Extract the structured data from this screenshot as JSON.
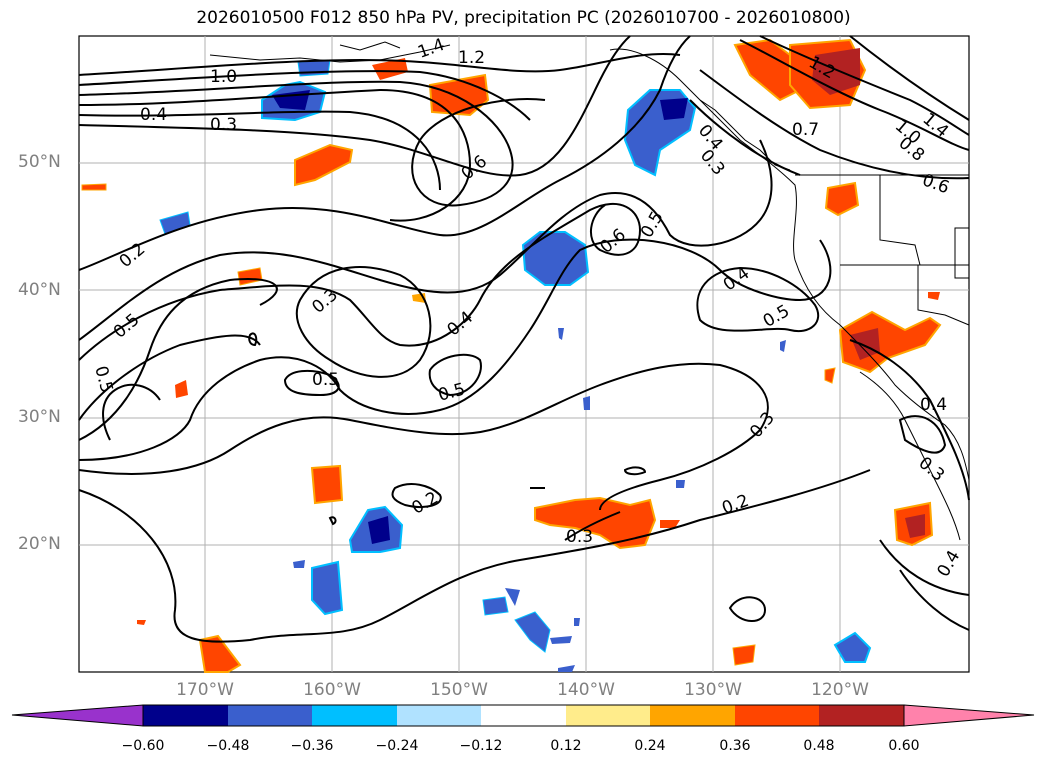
{
  "title": "2026010500 F012 850 hPa PV, precipitation PC (2026010700 - 2026010800)",
  "map": {
    "lat_labels": [
      "50°N",
      "40°N",
      "30°N",
      "20°N"
    ],
    "lon_labels": [
      "170°W",
      "160°W",
      "150°W",
      "140°W",
      "130°W",
      "120°W"
    ],
    "pv_contour_labels": [
      "1.0",
      "1.4",
      "1.2",
      "0.4",
      "0.3",
      "0.6",
      "0.6",
      "0.5",
      "0.2",
      "0.5",
      "0.3",
      "0.4",
      "0.5",
      "0.5",
      "0.5",
      "0.4",
      "0.5",
      "0.3",
      "0.2",
      "0.2",
      "0.3",
      "1.2",
      "0.7",
      "1.0",
      "0.8",
      "1.4",
      "0.6",
      "0.4",
      "0.3",
      "0.4",
      "0.3",
      "0.4"
    ]
  },
  "colorbar": {
    "ticks": [
      "−0.60",
      "−0.48",
      "−0.36",
      "−0.24",
      "−0.12",
      "0.12",
      "0.24",
      "0.36",
      "0.48",
      "0.60"
    ],
    "colors": [
      "#9932cc",
      "#00008b",
      "#3a5fcd",
      "#00bfff",
      "#b0e2ff",
      "#ffffff",
      "#ffec8b",
      "#ffa500",
      "#ff4500",
      "#b22222",
      "#ff82ab"
    ]
  }
}
